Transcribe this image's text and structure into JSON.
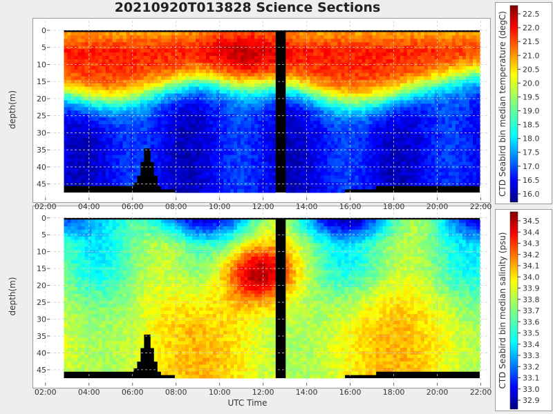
{
  "title": "20210920T013828 Science Sections",
  "chart_data": [
    {
      "type": "heatmap",
      "xlabel": "UTC Time",
      "ylabel": "depth(m)",
      "x_ticks": [
        "02:00",
        "04:00",
        "06:00",
        "08:00",
        "10:00",
        "12:00",
        "14:00",
        "16:00",
        "18:00",
        "20:00",
        "22:00"
      ],
      "x_range_hours": [
        1.5,
        22.3
      ],
      "y_ticks": [
        0,
        5,
        10,
        15,
        20,
        25,
        30,
        35,
        40,
        45
      ],
      "ylim": [
        48.5,
        -2
      ],
      "colorbar": {
        "label": "CTD Seabird bin median temperature (degC)",
        "range": [
          15.7,
          22.8
        ],
        "ticks": [
          "16.0",
          "16.5",
          "17.0",
          "17.5",
          "18.0",
          "18.5",
          "19.0",
          "19.5",
          "20.0",
          "20.5",
          "21.0",
          "21.5",
          "22.0",
          "22.5"
        ]
      },
      "grid": true
    },
    {
      "type": "heatmap",
      "xlabel": "UTC Time",
      "ylabel": "depth(m)",
      "x_ticks": [
        "02:00",
        "04:00",
        "06:00",
        "08:00",
        "10:00",
        "12:00",
        "14:00",
        "16:00",
        "18:00",
        "20:00",
        "22:00"
      ],
      "x_range_hours": [
        1.5,
        22.3
      ],
      "y_ticks": [
        0,
        5,
        10,
        15,
        20,
        25,
        30,
        35,
        40,
        45
      ],
      "ylim": [
        48.5,
        -2
      ],
      "colorbar": {
        "label": "CTD Seabird bin median salinity (psu)",
        "range": [
          32.82,
          34.58
        ],
        "ticks": [
          "32.9",
          "33.0",
          "33.1",
          "33.2",
          "33.3",
          "33.4",
          "33.5",
          "33.6",
          "33.7",
          "33.8",
          "33.9",
          "34.0",
          "34.1",
          "34.2",
          "34.3",
          "34.4",
          "34.5"
        ]
      },
      "grid": true
    }
  ]
}
